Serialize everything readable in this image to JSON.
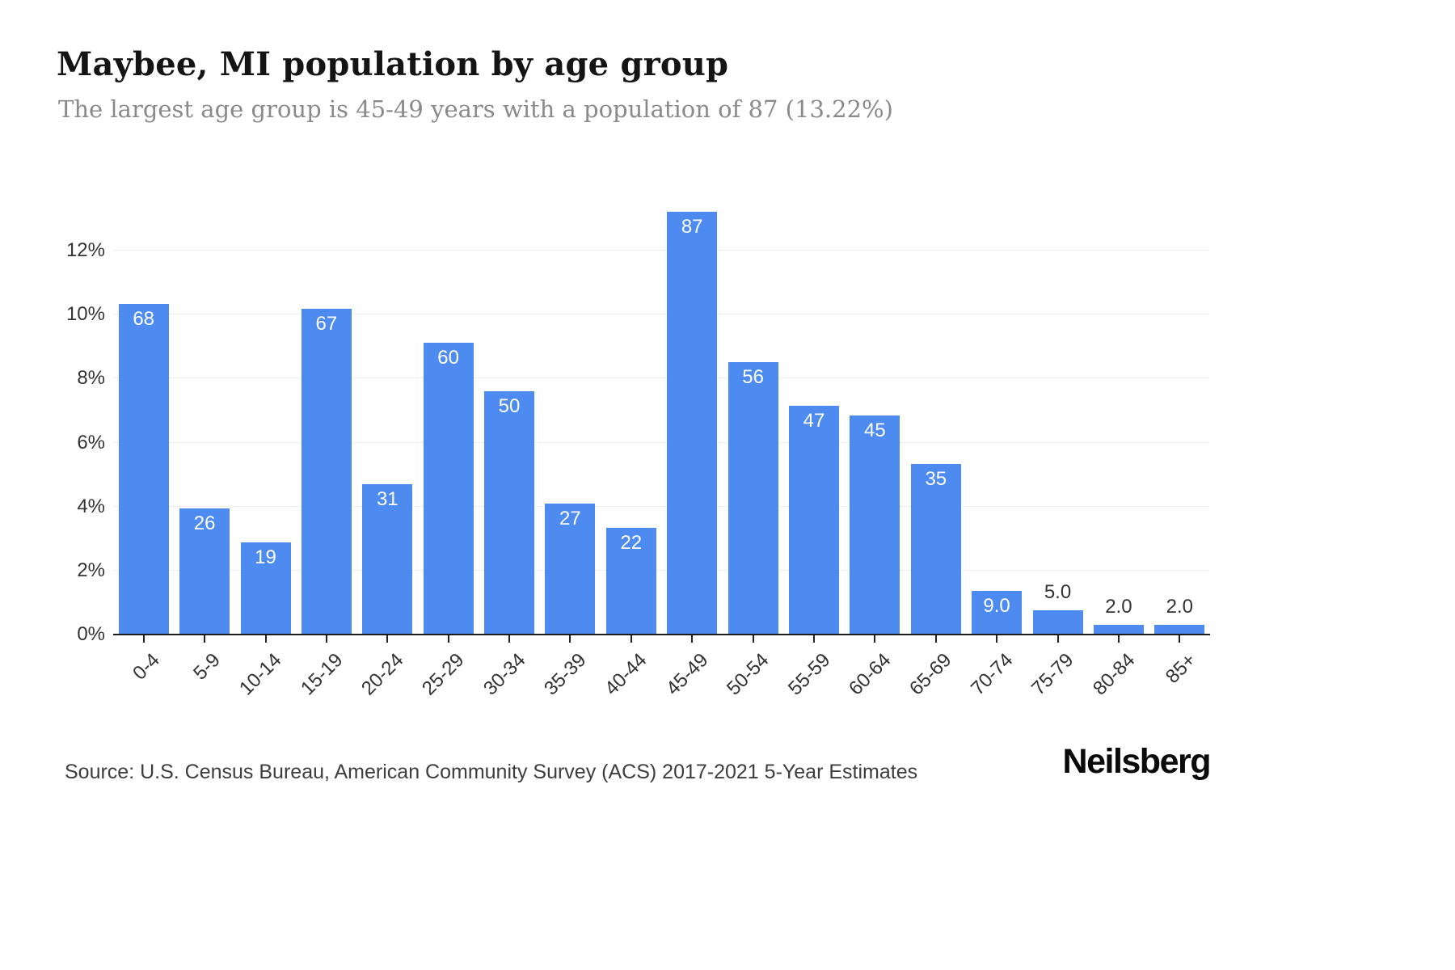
{
  "chart_data": {
    "type": "bar",
    "title": "Maybee, MI population by age group",
    "subtitle": "The largest age group is 45-49 years with a population of 87 (13.22%)",
    "categories": [
      "0-4",
      "5-9",
      "10-14",
      "15-19",
      "20-24",
      "25-29",
      "30-34",
      "35-39",
      "40-44",
      "45-49",
      "50-54",
      "55-59",
      "60-64",
      "65-69",
      "70-74",
      "75-79",
      "80-84",
      "85+"
    ],
    "values": [
      68,
      26,
      19,
      67,
      31,
      60,
      50,
      27,
      22,
      87,
      56,
      47,
      45,
      35,
      9,
      5,
      2,
      2
    ],
    "value_labels": [
      "68",
      "26",
      "19",
      "67",
      "31",
      "60",
      "50",
      "27",
      "22",
      "87",
      "56",
      "47",
      "45",
      "35",
      "9.0",
      "5.0",
      "2.0",
      "2.0"
    ],
    "percents": [
      10.33,
      3.95,
      2.89,
      10.18,
      4.71,
      9.12,
      7.6,
      4.1,
      3.34,
      13.22,
      8.51,
      7.14,
      6.84,
      5.32,
      1.37,
      0.76,
      0.3,
      0.3
    ],
    "xlabel": "",
    "ylabel": "",
    "ylim": [
      0,
      13.39
    ],
    "yticks": [
      0,
      2,
      4,
      6,
      8,
      10,
      12
    ],
    "ytick_labels": [
      "0%",
      "2%",
      "4%",
      "6%",
      "8%",
      "10%",
      "12%"
    ],
    "grid": true,
    "legend": false,
    "bar_color": "#4d8bf0",
    "label_color_inside": "#ffffff",
    "label_color_outside": "#333333"
  },
  "footer": {
    "source": "Source: U.S. Census Bureau, American Community Survey (ACS) 2017-2021 5-Year Estimates",
    "brand": "Neilsberg"
  }
}
